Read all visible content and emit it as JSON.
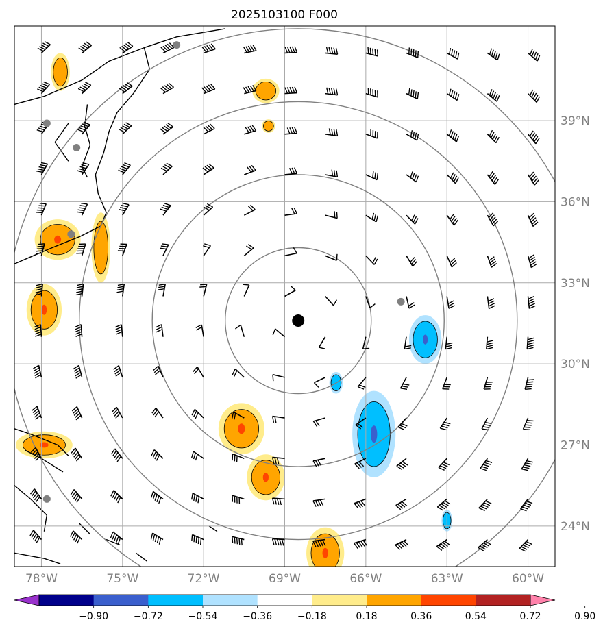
{
  "title": "2025103100 F000",
  "x_labels": [
    "78°W",
    "75°W",
    "72°W",
    "69°W",
    "66°W",
    "63°W",
    "60°W"
  ],
  "y_labels": [
    "39°N",
    "36°N",
    "33°N",
    "30°N",
    "27°N",
    "24°N"
  ],
  "colorbar": {
    "ticks": [
      "−0.90",
      "−0.72",
      "−0.54",
      "−0.36",
      "−0.18",
      "0.18",
      "0.36",
      "0.54",
      "0.72",
      "0.90"
    ],
    "colors": [
      "#9932cc",
      "#00008b",
      "#3a5fcd",
      "#00bfff",
      "#b0e2ff",
      "#ffffff",
      "#ffec8b",
      "#ffa500",
      "#ff4500",
      "#b22222",
      "#ff82ab"
    ]
  },
  "storm_center": {
    "lon": -68.5,
    "lat": 31.6
  },
  "range_rings_deg": [
    2.7,
    5.4,
    8.1,
    10.8
  ],
  "stations": [
    {
      "lon": -73.0,
      "lat": 41.8
    },
    {
      "lon": -77.8,
      "lat": 38.9
    },
    {
      "lon": -76.7,
      "lat": 38.0
    },
    {
      "lon": -76.9,
      "lat": 34.8
    },
    {
      "lon": -64.7,
      "lat": 32.3
    },
    {
      "lon": -77.8,
      "lat": 25.0
    }
  ],
  "shaded_features": [
    {
      "level": "positive",
      "lon": -77.3,
      "lat": 40.8,
      "rx": 0.35,
      "ry": 0.7
    },
    {
      "level": "positive",
      "lon": -69.7,
      "lat": 40.1,
      "rx": 0.5,
      "ry": 0.45
    },
    {
      "level": "positive",
      "lon": -69.6,
      "lat": 38.8,
      "rx": 0.25,
      "ry": 0.25
    },
    {
      "level": "positive",
      "lon": -77.4,
      "lat": 34.6,
      "rx": 0.85,
      "ry": 0.75
    },
    {
      "level": "positive",
      "lon": -75.8,
      "lat": 34.3,
      "rx": 0.35,
      "ry": 1.3
    },
    {
      "level": "positive",
      "lon": -77.9,
      "lat": 32.0,
      "rx": 0.65,
      "ry": 0.95
    },
    {
      "level": "positive",
      "lon": -77.9,
      "lat": 27.0,
      "rx": 1.05,
      "ry": 0.5
    },
    {
      "level": "positive",
      "lon": -70.6,
      "lat": 27.6,
      "rx": 0.85,
      "ry": 0.95
    },
    {
      "level": "positive",
      "lon": -69.7,
      "lat": 25.8,
      "rx": 0.7,
      "ry": 0.85
    },
    {
      "level": "positive",
      "lon": -67.5,
      "lat": 23.0,
      "rx": 0.7,
      "ry": 0.95
    },
    {
      "level": "negative",
      "lon": -63.8,
      "lat": 30.9,
      "rx": 0.6,
      "ry": 0.9
    },
    {
      "level": "negative",
      "lon": -65.7,
      "lat": 27.4,
      "rx": 0.8,
      "ry": 1.6
    },
    {
      "level": "negative",
      "lon": -67.1,
      "lat": 29.3,
      "rx": 0.25,
      "ry": 0.4
    },
    {
      "level": "negative",
      "lon": -63.0,
      "lat": 24.2,
      "rx": 0.2,
      "ry": 0.4
    }
  ]
}
